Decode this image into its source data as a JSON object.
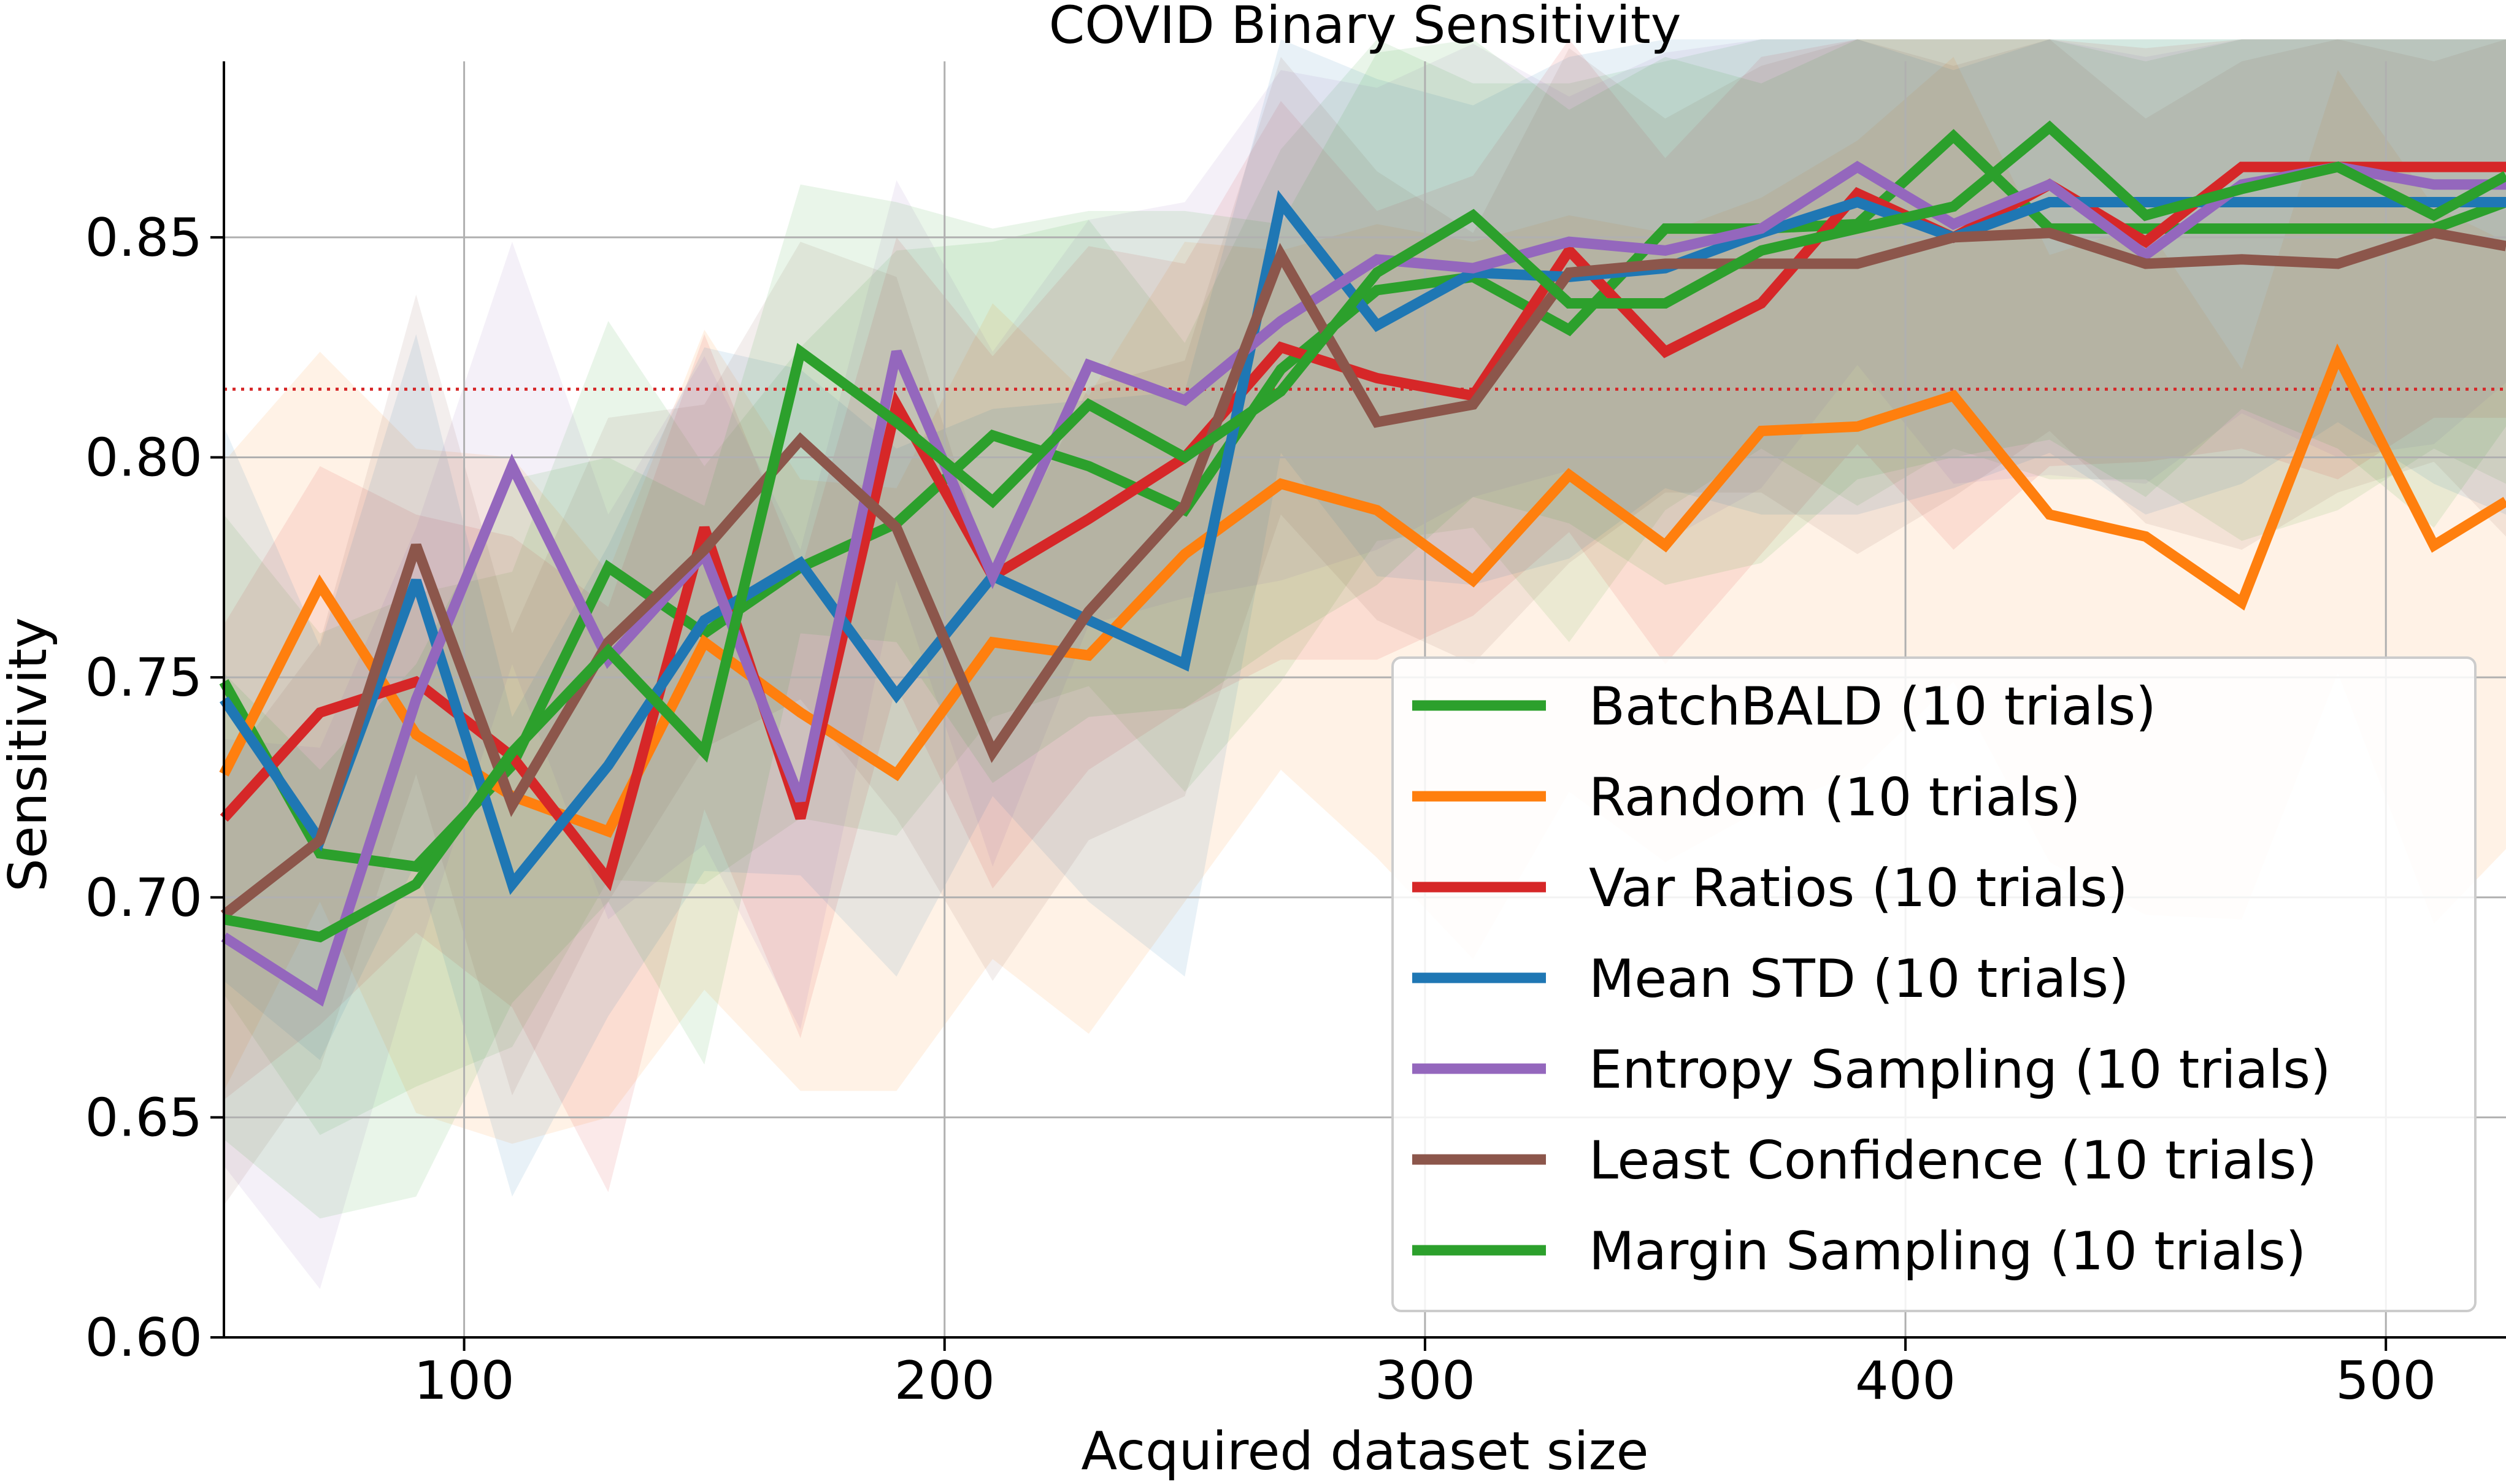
{
  "chart_data": {
    "type": "line",
    "title": "COVID Binary Sensitivity",
    "xlabel": "Acquired dataset size",
    "ylabel": "Sensitivity",
    "xlim": [
      50,
      525
    ],
    "ylim": [
      0.6,
      0.89
    ],
    "xticks": [
      100,
      200,
      300,
      400,
      500
    ],
    "yticks": [
      0.6,
      0.65,
      0.7,
      0.75,
      0.8,
      0.85
    ],
    "ytick_labels": [
      "0.60",
      "0.65",
      "0.70",
      "0.75",
      "0.80",
      "0.85"
    ],
    "grid": true,
    "legend_position": "lower-right",
    "reference_line": {
      "y": 0.8155,
      "style": "dotted",
      "color": "#d62728"
    },
    "x": [
      50,
      70,
      90,
      110,
      130,
      150,
      170,
      190,
      210,
      230,
      250,
      270,
      290,
      310,
      330,
      350,
      370,
      390,
      410,
      430,
      450,
      470,
      490,
      510,
      525
    ],
    "series": [
      {
        "name": "BatchBALD (10 trials)",
        "color": "#2ca02c",
        "values": [
          0.749,
          0.71,
          0.707,
          0.73,
          0.775,
          0.76,
          0.775,
          0.785,
          0.805,
          0.798,
          0.788,
          0.82,
          0.838,
          0.841,
          0.829,
          0.852,
          0.852,
          0.853,
          0.873,
          0.852,
          0.852,
          0.852,
          0.852,
          0.852,
          0.858
        ],
        "band": 0.05
      },
      {
        "name": "Random (10 trials)",
        "color": "#ff7f0e",
        "values": [
          0.728,
          0.771,
          0.737,
          0.723,
          0.715,
          0.758,
          0.742,
          0.728,
          0.758,
          0.755,
          0.778,
          0.794,
          0.788,
          0.772,
          0.796,
          0.78,
          0.806,
          0.807,
          0.814,
          0.787,
          0.782,
          0.767,
          0.823,
          0.78,
          0.79
        ],
        "band": 0.065
      },
      {
        "name": "Var Ratios (10 trials)",
        "color": "#d62728",
        "values": [
          0.718,
          0.742,
          0.749,
          0.732,
          0.704,
          0.784,
          0.718,
          0.812,
          0.773,
          0.786,
          0.8,
          0.825,
          0.818,
          0.814,
          0.847,
          0.824,
          0.835,
          0.86,
          0.85,
          0.862,
          0.849,
          0.866,
          0.866,
          0.866,
          0.866
        ],
        "band": 0.05
      },
      {
        "name": "Mean STD (10 trials)",
        "color": "#1f77b4",
        "values": [
          0.745,
          0.713,
          0.772,
          0.703,
          0.73,
          0.763,
          0.776,
          0.746,
          0.773,
          0.763,
          0.753,
          0.858,
          0.83,
          0.842,
          0.841,
          0.843,
          0.851,
          0.858,
          0.85,
          0.858,
          0.858,
          0.858,
          0.858,
          0.858,
          0.858
        ],
        "band": 0.05
      },
      {
        "name": "Entropy Sampling (10 trials)",
        "color": "#9467bd",
        "values": [
          0.691,
          0.677,
          0.745,
          0.798,
          0.754,
          0.778,
          0.722,
          0.824,
          0.773,
          0.821,
          0.813,
          0.831,
          0.845,
          0.843,
          0.849,
          0.847,
          0.852,
          0.866,
          0.853,
          0.862,
          0.846,
          0.862,
          0.866,
          0.862,
          0.862
        ],
        "band": 0.045
      },
      {
        "name": "Least Confidence (10 trials)",
        "color": "#8c564b",
        "values": [
          0.696,
          0.713,
          0.78,
          0.721,
          0.758,
          0.779,
          0.804,
          0.784,
          0.733,
          0.765,
          0.789,
          0.846,
          0.808,
          0.812,
          0.842,
          0.844,
          0.844,
          0.844,
          0.85,
          0.851,
          0.844,
          0.845,
          0.844,
          0.851,
          0.848
        ],
        "band": 0.045
      },
      {
        "name": "Margin Sampling (10 trials)",
        "color": "#2ca02c",
        "values": [
          0.695,
          0.691,
          0.703,
          0.733,
          0.756,
          0.733,
          0.824,
          0.808,
          0.79,
          0.812,
          0.8,
          0.815,
          0.842,
          0.855,
          0.835,
          0.835,
          0.847,
          0.852,
          0.857,
          0.875,
          0.855,
          0.861,
          0.866,
          0.855,
          0.864
        ],
        "band": 0.05
      }
    ]
  }
}
